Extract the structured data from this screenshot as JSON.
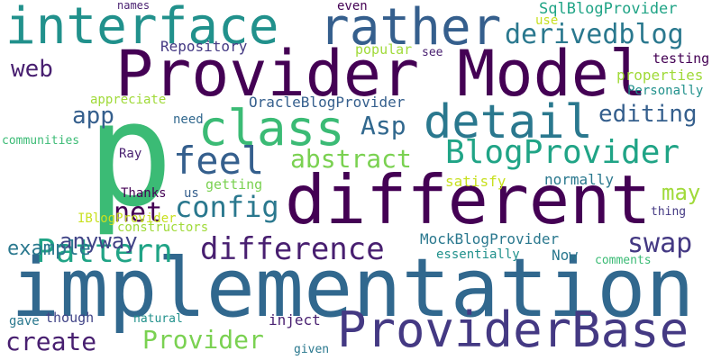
{
  "words": [
    {
      "text": "implementation",
      "color": "#31688e"
    },
    {
      "text": "different",
      "color": "#440154"
    },
    {
      "text": "p",
      "color": "#3bbb75"
    },
    {
      "text": "Provider Model",
      "color": "#440154"
    },
    {
      "text": "interface",
      "color": "#21918c"
    },
    {
      "text": "rather",
      "color": "#355f8d"
    },
    {
      "text": "ProviderBase",
      "color": "#443983"
    },
    {
      "text": "detail",
      "color": "#2a788e"
    },
    {
      "text": "class",
      "color": "#3bbb75"
    },
    {
      "text": "BlogProvider",
      "color": "#20a486"
    },
    {
      "text": "difference",
      "color": "#481f70"
    },
    {
      "text": "Pattern",
      "color": "#20a486"
    },
    {
      "text": "feel",
      "color": "#355f8d"
    },
    {
      "text": "abstract",
      "color": "#7ad151"
    },
    {
      "text": "derivedblog",
      "color": "#2a788e"
    },
    {
      "text": "editing",
      "color": "#355f8d"
    },
    {
      "text": "config",
      "color": "#2a788e"
    },
    {
      "text": "net",
      "color": "#440154"
    },
    {
      "text": "Asp",
      "color": "#31688e"
    },
    {
      "text": "swap",
      "color": "#443983"
    },
    {
      "text": "may",
      "color": "#a0da39"
    },
    {
      "text": "create",
      "color": "#481f70"
    },
    {
      "text": "Provider",
      "color": "#7ad151"
    },
    {
      "text": "anyway",
      "color": "#414487"
    },
    {
      "text": "example",
      "color": "#2a788e"
    },
    {
      "text": "app",
      "color": "#355f8d"
    },
    {
      "text": "web",
      "color": "#481f70"
    },
    {
      "text": "SqlBlogProvider",
      "color": "#20a486"
    },
    {
      "text": "Repository",
      "color": "#443983"
    },
    {
      "text": "OracleBlogProvider",
      "color": "#355f8d"
    },
    {
      "text": "MockBlogProvider",
      "color": "#2a788e"
    },
    {
      "text": "popular",
      "color": "#a0da39"
    },
    {
      "text": "testing",
      "color": "#440154"
    },
    {
      "text": "properties",
      "color": "#a0da39"
    },
    {
      "text": "Personally",
      "color": "#21918c"
    },
    {
      "text": "appreciate",
      "color": "#a0da39"
    },
    {
      "text": "need",
      "color": "#31688e"
    },
    {
      "text": "IBlogProvider",
      "color": "#c8e020"
    },
    {
      "text": "communities",
      "color": "#3bbb75"
    },
    {
      "text": "Ray",
      "color": "#481f70"
    },
    {
      "text": "Thanks",
      "color": "#440154"
    },
    {
      "text": "us",
      "color": "#355f8d"
    },
    {
      "text": "getting",
      "color": "#7ad151"
    },
    {
      "text": "satisfy",
      "color": "#c8e020"
    },
    {
      "text": "normally",
      "color": "#2a788e"
    },
    {
      "text": "constructors",
      "color": "#a0da39"
    },
    {
      "text": "thing",
      "color": "#443983"
    },
    {
      "text": "essentially",
      "color": "#21918c"
    },
    {
      "text": "Now",
      "color": "#2a788e"
    },
    {
      "text": "comments",
      "color": "#3bbb75"
    },
    {
      "text": "inject",
      "color": "#481f70"
    },
    {
      "text": "gave",
      "color": "#2a788e"
    },
    {
      "text": "though",
      "color": "#414487"
    },
    {
      "text": "natural",
      "color": "#21918c"
    },
    {
      "text": "given",
      "color": "#2a788e"
    },
    {
      "text": "names",
      "color": "#481f70"
    },
    {
      "text": "even",
      "color": "#440154"
    },
    {
      "text": "see",
      "color": "#481f70"
    },
    {
      "text": "use",
      "color": "#c8e020"
    }
  ]
}
